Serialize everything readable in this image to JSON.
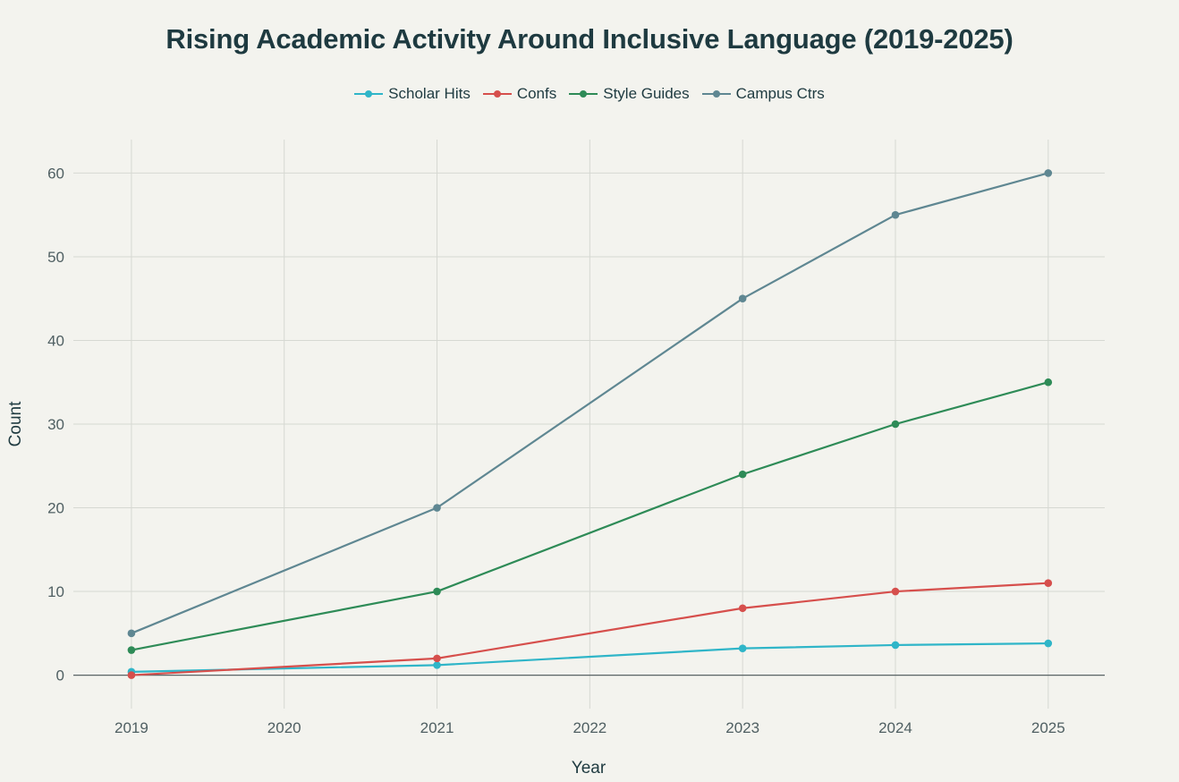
{
  "chart_data": {
    "type": "line",
    "title": "Rising Academic Activity Around Inclusive Language (2019-2025)",
    "xlabel": "Year",
    "ylabel": "Count",
    "x": [
      2019,
      2020,
      2021,
      2022,
      2023,
      2024,
      2025
    ],
    "x_tick_labels": [
      "2019",
      "2020",
      "2021",
      "2022",
      "2023",
      "2024",
      "2025"
    ],
    "y_ticks": [
      0,
      10,
      20,
      30,
      40,
      50,
      60
    ],
    "y_tick_labels": [
      "0",
      "10",
      "20",
      "30",
      "40",
      "50",
      "60"
    ],
    "xlim": [
      2018.62,
      2025.37
    ],
    "ylim": [
      -4,
      64
    ],
    "grid": true,
    "legend_position": "top-center",
    "series": [
      {
        "name": "Scholar Hits",
        "color": "#2fb5c8",
        "x": [
          2019,
          2021,
          2023,
          2024,
          2025
        ],
        "values": [
          0.4,
          1.2,
          3.2,
          3.6,
          3.8
        ]
      },
      {
        "name": "Confs",
        "color": "#d64f4c",
        "x": [
          2019,
          2021,
          2023,
          2024,
          2025
        ],
        "values": [
          0,
          2,
          8,
          10,
          11
        ]
      },
      {
        "name": "Style Guides",
        "color": "#2e8b57",
        "x": [
          2019,
          2021,
          2023,
          2024,
          2025
        ],
        "values": [
          3,
          10,
          24,
          30,
          35
        ]
      },
      {
        "name": "Campus Ctrs",
        "color": "#5f8792",
        "x": [
          2019,
          2021,
          2023,
          2024,
          2025
        ],
        "values": [
          5,
          20,
          45,
          55,
          60
        ]
      }
    ]
  }
}
